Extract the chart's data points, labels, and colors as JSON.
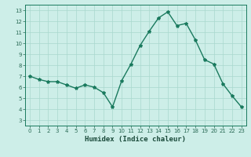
{
  "x": [
    0,
    1,
    2,
    3,
    4,
    5,
    6,
    7,
    8,
    9,
    10,
    11,
    12,
    13,
    14,
    15,
    16,
    17,
    18,
    19,
    20,
    21,
    22,
    23
  ],
  "y": [
    7.0,
    6.7,
    6.5,
    6.5,
    6.2,
    5.9,
    6.2,
    6.0,
    5.5,
    4.2,
    6.6,
    8.1,
    9.8,
    11.1,
    12.3,
    12.85,
    11.6,
    11.8,
    10.3,
    8.5,
    8.1,
    6.3,
    5.2,
    4.2
  ],
  "line_color": "#1a7a5e",
  "marker": "*",
  "marker_size": 3,
  "bg_color": "#cdeee8",
  "grid_color": "#a8d8ce",
  "xlabel": "Humidex (Indice chaleur)",
  "xlim": [
    -0.5,
    23.5
  ],
  "ylim": [
    2.5,
    13.5
  ],
  "xticks": [
    0,
    1,
    2,
    3,
    4,
    5,
    6,
    7,
    8,
    9,
    10,
    11,
    12,
    13,
    14,
    15,
    16,
    17,
    18,
    19,
    20,
    21,
    22,
    23
  ],
  "yticks": [
    3,
    4,
    5,
    6,
    7,
    8,
    9,
    10,
    11,
    12,
    13
  ],
  "tick_label_fontsize": 5.0,
  "xlabel_fontsize": 6.5,
  "tick_color": "#2a6a55",
  "label_color": "#1a4a3a",
  "axis_color": "#1a7a5e",
  "linewidth": 1.0
}
